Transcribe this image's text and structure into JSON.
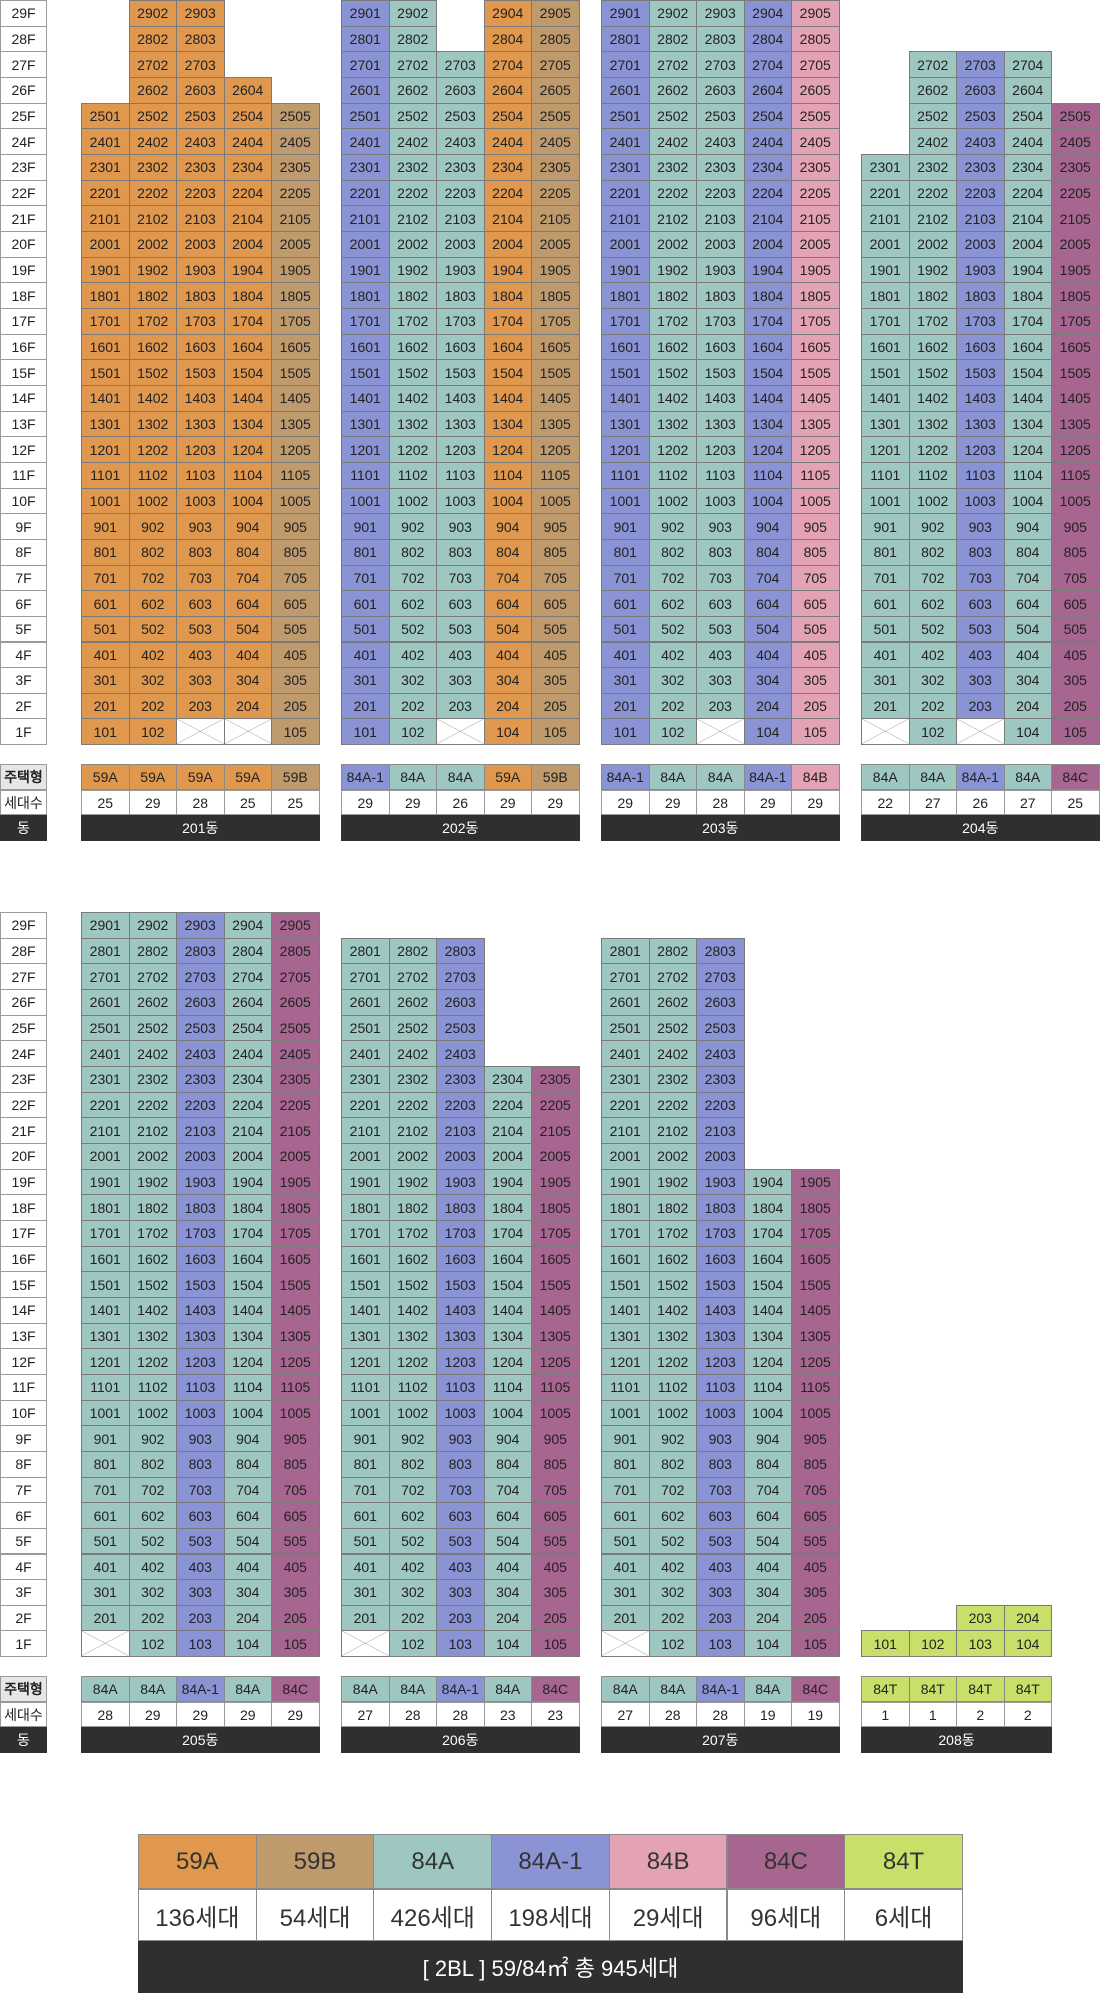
{
  "colors": {
    "59A": "#e0974e",
    "59B": "#bf9a6d",
    "84A": "#9ec7c2",
    "84A-1": "#8a93d4",
    "84B": "#e3a3b5",
    "84C": "#a6668f",
    "84T": "#c8e06a"
  },
  "labels": {
    "type_header": "주택형",
    "count_header": "세대수",
    "building_header": "동"
  },
  "sections": [
    {
      "floor_labels": [
        "29F",
        "28F",
        "27F",
        "26F",
        "25F",
        "24F",
        "23F",
        "22F",
        "21F",
        "20F",
        "19F",
        "18F",
        "17F",
        "16F",
        "15F",
        "14F",
        "13F",
        "12F",
        "11F",
        "10F",
        "9F",
        "8F",
        "7F",
        "6F",
        "5F",
        "4F",
        "3F",
        "2F",
        "1F"
      ],
      "buildings": [
        {
          "name": "201동",
          "lines": [
            {
              "type": "59A",
              "count": "25",
              "top": 25,
              "empty_floors": []
            },
            {
              "type": "59A",
              "count": "29",
              "top": 29,
              "empty_floors": []
            },
            {
              "type": "59A",
              "count": "28",
              "top": 29,
              "empty_floors": [
                1
              ]
            },
            {
              "type": "59A",
              "count": "25",
              "top": 26,
              "empty_floors": [
                1
              ]
            },
            {
              "type": "59B",
              "count": "25",
              "top": 25,
              "empty_floors": []
            }
          ]
        },
        {
          "name": "202동",
          "lines": [
            {
              "type": "84A-1",
              "count": "29",
              "top": 29,
              "empty_floors": []
            },
            {
              "type": "84A",
              "count": "29",
              "top": 29,
              "empty_floors": []
            },
            {
              "type": "84A",
              "count": "26",
              "top": 27,
              "empty_floors": [
                1
              ]
            },
            {
              "type": "59A",
              "count": "29",
              "top": 29,
              "empty_floors": []
            },
            {
              "type": "59B",
              "count": "29",
              "top": 29,
              "empty_floors": []
            }
          ]
        },
        {
          "name": "203동",
          "lines": [
            {
              "type": "84A-1",
              "count": "29",
              "top": 29,
              "empty_floors": []
            },
            {
              "type": "84A",
              "count": "29",
              "top": 29,
              "empty_floors": []
            },
            {
              "type": "84A",
              "count": "28",
              "top": 29,
              "empty_floors": [
                1
              ]
            },
            {
              "type": "84A-1",
              "count": "29",
              "top": 29,
              "empty_floors": []
            },
            {
              "type": "84B",
              "count": "29",
              "top": 29,
              "empty_floors": []
            }
          ]
        },
        {
          "name": "204동",
          "lines": [
            {
              "type": "84A",
              "count": "22",
              "top": 23,
              "empty_floors": [
                1
              ]
            },
            {
              "type": "84A",
              "count": "27",
              "top": 27,
              "empty_floors": []
            },
            {
              "type": "84A-1",
              "count": "26",
              "top": 27,
              "empty_floors": [
                1
              ]
            },
            {
              "type": "84A",
              "count": "27",
              "top": 27,
              "empty_floors": []
            },
            {
              "type": "84C",
              "count": "25",
              "top": 25,
              "empty_floors": []
            }
          ]
        }
      ]
    },
    {
      "floor_labels": [
        "29F",
        "28F",
        "27F",
        "26F",
        "25F",
        "24F",
        "23F",
        "22F",
        "21F",
        "20F",
        "19F",
        "18F",
        "17F",
        "16F",
        "15F",
        "14F",
        "13F",
        "12F",
        "11F",
        "10F",
        "9F",
        "8F",
        "7F",
        "6F",
        "5F",
        "4F",
        "3F",
        "2F",
        "1F"
      ],
      "buildings": [
        {
          "name": "205동",
          "lines": [
            {
              "type": "84A",
              "count": "28",
              "top": 29,
              "empty_floors": [
                1
              ]
            },
            {
              "type": "84A",
              "count": "29",
              "top": 29,
              "empty_floors": []
            },
            {
              "type": "84A-1",
              "count": "29",
              "top": 29,
              "empty_floors": []
            },
            {
              "type": "84A",
              "count": "29",
              "top": 29,
              "empty_floors": []
            },
            {
              "type": "84C",
              "count": "29",
              "top": 29,
              "empty_floors": []
            }
          ]
        },
        {
          "name": "206동",
          "lines": [
            {
              "type": "84A",
              "count": "27",
              "top": 28,
              "empty_floors": [
                1
              ]
            },
            {
              "type": "84A",
              "count": "28",
              "top": 28,
              "empty_floors": []
            },
            {
              "type": "84A-1",
              "count": "28",
              "top": 28,
              "empty_floors": []
            },
            {
              "type": "84A",
              "count": "23",
              "top": 23,
              "empty_floors": []
            },
            {
              "type": "84C",
              "count": "23",
              "top": 23,
              "empty_floors": []
            }
          ]
        },
        {
          "name": "207동",
          "lines": [
            {
              "type": "84A",
              "count": "27",
              "top": 28,
              "empty_floors": [
                1
              ]
            },
            {
              "type": "84A",
              "count": "28",
              "top": 28,
              "empty_floors": []
            },
            {
              "type": "84A-1",
              "count": "28",
              "top": 28,
              "empty_floors": []
            },
            {
              "type": "84A",
              "count": "19",
              "top": 19,
              "empty_floors": []
            },
            {
              "type": "84C",
              "count": "19",
              "top": 19,
              "empty_floors": []
            }
          ]
        },
        {
          "name": "208동",
          "lines": [
            {
              "type": "84T",
              "count": "1",
              "top": 1,
              "empty_floors": []
            },
            {
              "type": "84T",
              "count": "1",
              "top": 1,
              "empty_floors": []
            },
            {
              "type": "84T",
              "count": "2",
              "top": 2,
              "empty_floors": []
            },
            {
              "type": "84T",
              "count": "2",
              "top": 2,
              "empty_floors": []
            }
          ],
          "line_offset": 0
        }
      ]
    }
  ],
  "legend": {
    "items": [
      {
        "type": "59A",
        "count": "136세대"
      },
      {
        "type": "59B",
        "count": "54세대"
      },
      {
        "type": "84A",
        "count": "426세대"
      },
      {
        "type": "84A-1",
        "count": "198세대"
      },
      {
        "type": "84B",
        "count": "29세대"
      },
      {
        "type": "84C",
        "count": "96세대"
      },
      {
        "type": "84T",
        "count": "6세대"
      }
    ],
    "total": "[ 2BL ] 59/84㎡ 총 945세대"
  }
}
